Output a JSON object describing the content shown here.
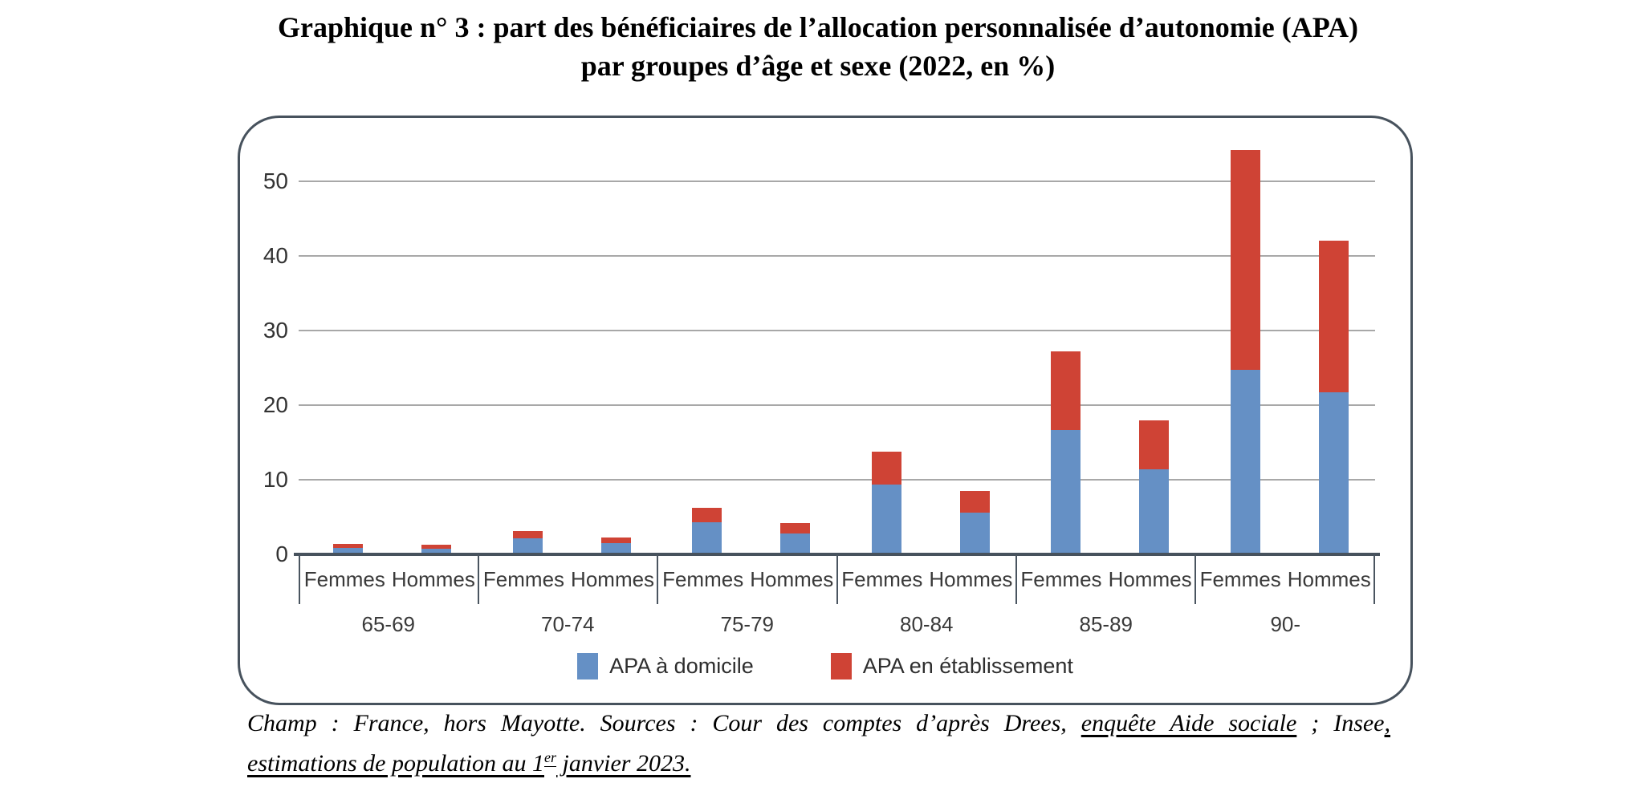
{
  "title": {
    "line1": "Graphique n° 3 : part des bénéficiaires de l’allocation personnalisée d’autonomie (APA)",
    "line2": "par groupes d’âge et sexe (2022, en %)"
  },
  "chart_data": {
    "type": "bar",
    "stacked": true,
    "title": "Part des bénéficiaires de l’allocation personnalisée d’autonomie (APA) par groupes d’âge et sexe (2022, en %)",
    "unit": "%",
    "categories": [
      "65-69",
      "70-74",
      "75-79",
      "80-84",
      "85-89",
      "90-"
    ],
    "sex_labels": [
      "Femmes",
      "Hommes"
    ],
    "y_ticks": [
      0,
      10,
      20,
      30,
      40,
      50
    ],
    "ylim": [
      0,
      58.5
    ],
    "grid": true,
    "legend_position": "bottom",
    "series": [
      {
        "name": "APA à domicile",
        "color": "#6590C5",
        "femmes": [
          0.9,
          2.1,
          4.3,
          9.4,
          16.7,
          24.7
        ],
        "hommes": [
          0.8,
          1.5,
          2.8,
          5.6,
          11.4,
          21.7
        ]
      },
      {
        "name": "APA en établissement",
        "color": "#CF4335",
        "femmes": [
          0.5,
          1.0,
          1.9,
          4.4,
          10.5,
          29.5
        ],
        "hommes": [
          0.5,
          0.8,
          1.4,
          2.9,
          6.6,
          20.3
        ]
      }
    ]
  },
  "legend": {
    "items": [
      {
        "label": "APA à domicile",
        "color": "#6590C5"
      },
      {
        "label": "APA en établissement",
        "color": "#CF4335"
      }
    ]
  },
  "footer": {
    "line1": [
      {
        "text": "Champ : France, hors Mayotte. Sources : Cour des comptes d’après Drees, ",
        "underline": false
      },
      {
        "text": "enquête Aide sociale",
        "underline": true
      },
      {
        "text": " ; Insee",
        "underline": false
      },
      {
        "text": ",",
        "underline": true
      }
    ],
    "line2": [
      {
        "text": "estimations de population au 1",
        "underline": true
      },
      {
        "text": "er",
        "underline": true,
        "sup": true
      },
      {
        "text": " janvier 2023.",
        "underline": true
      }
    ]
  },
  "colors": {
    "axis": "#47525D",
    "grid": "#A8A8A8",
    "text": "#3A3A3A"
  }
}
